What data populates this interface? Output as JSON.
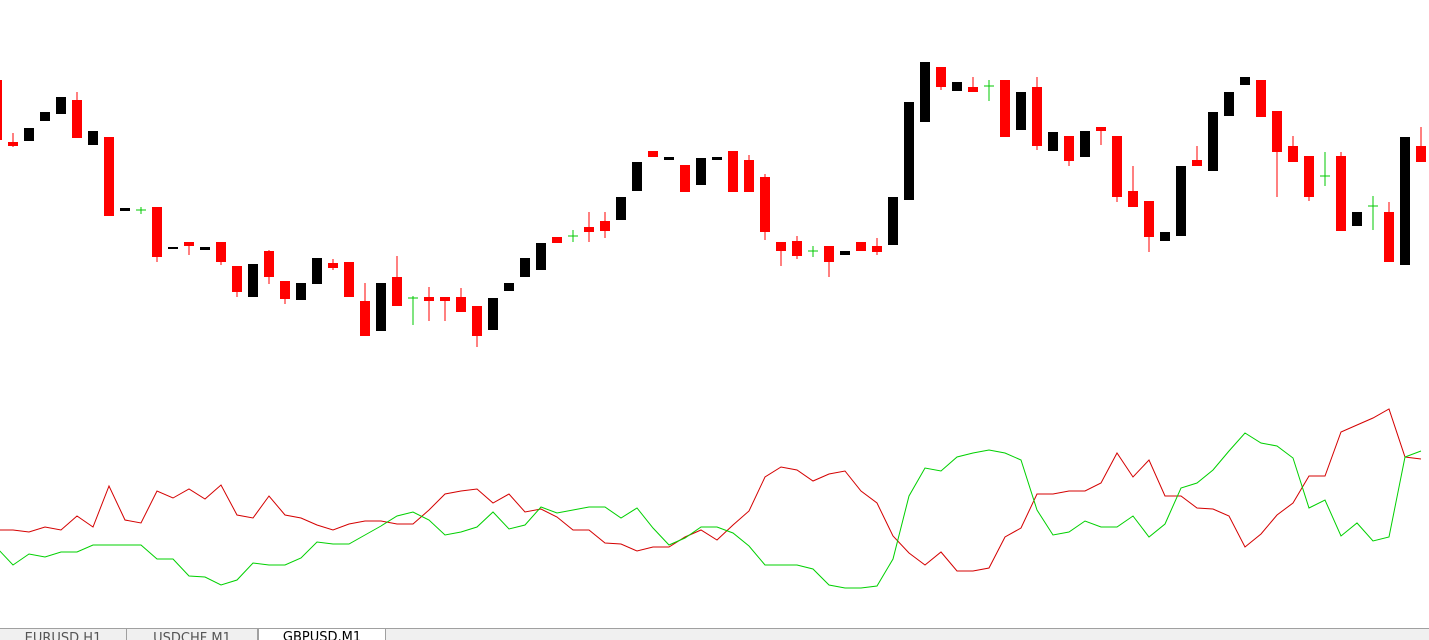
{
  "chart_data": [
    {
      "type": "candlestick",
      "open": [
        320,
        258,
        259,
        279,
        286,
        300,
        255,
        263,
        189,
        190,
        193,
        151,
        158,
        150,
        158,
        134,
        103,
        149,
        119,
        100,
        116,
        137,
        138,
        99,
        69,
        123,
        102,
        103,
        103,
        103,
        94,
        70,
        109,
        123,
        130,
        163,
        164,
        173,
        179,
        180,
        209,
        249,
        240,
        235,
        215,
        240,
        249,
        240,
        223,
        158,
        159,
        149,
        154,
        145,
        158,
        154,
        155,
        200,
        278,
        333,
        309,
        313,
        314,
        320,
        270,
        313,
        249,
        264,
        243,
        273,
        264,
        209,
        199,
        159,
        164,
        240,
        229,
        284,
        315,
        320,
        289,
        254,
        244,
        224,
        244,
        174,
        194,
        188,
        135,
        254
      ],
      "high": [
        320,
        267,
        272,
        288,
        303,
        308,
        269,
        263,
        192,
        193,
        193,
        153,
        158,
        153,
        158,
        134,
        136,
        150,
        119,
        117,
        142,
        141,
        138,
        117,
        117,
        144,
        104,
        113,
        103,
        112,
        94,
        102,
        117,
        142,
        157,
        163,
        170,
        188,
        188,
        203,
        238,
        249,
        243,
        235,
        242,
        243,
        249,
        245,
        226,
        158,
        164,
        154,
        154,
        149,
        158,
        162,
        203,
        298,
        338,
        333,
        318,
        323,
        320,
        320,
        308,
        323,
        268,
        264,
        269,
        273,
        264,
        234,
        199,
        168,
        234,
        254,
        288,
        308,
        323,
        320,
        289,
        264,
        244,
        248,
        248,
        188,
        204,
        198,
        263,
        273
      ],
      "low": [
        260,
        253,
        259,
        279,
        286,
        262,
        255,
        184,
        189,
        186,
        138,
        151,
        145,
        150,
        135,
        103,
        103,
        116,
        96,
        100,
        116,
        130,
        103,
        64,
        69,
        94,
        75,
        79,
        79,
        88,
        53,
        70,
        109,
        123,
        130,
        157,
        158,
        158,
        162,
        180,
        209,
        243,
        240,
        208,
        215,
        240,
        208,
        208,
        160,
        134,
        141,
        143,
        123,
        145,
        149,
        145,
        155,
        200,
        278,
        310,
        309,
        308,
        299,
        263,
        270,
        250,
        249,
        234,
        243,
        255,
        198,
        193,
        148,
        159,
        164,
        234,
        229,
        284,
        315,
        283,
        203,
        238,
        199,
        214,
        169,
        174,
        170,
        138,
        135,
        238
      ],
      "close": [
        260,
        254,
        272,
        288,
        303,
        262,
        269,
        184,
        192,
        190,
        143,
        153,
        154,
        153,
        138,
        108,
        136,
        123,
        101,
        117,
        142,
        132,
        103,
        64,
        117,
        94,
        102,
        99,
        99,
        88,
        64,
        102,
        117,
        142,
        157,
        157,
        164,
        168,
        169,
        203,
        238,
        243,
        243,
        208,
        242,
        243,
        208,
        208,
        168,
        149,
        144,
        149,
        138,
        149,
        149,
        148,
        203,
        298,
        338,
        313,
        318,
        308,
        314,
        263,
        308,
        254,
        268,
        239,
        269,
        269,
        203,
        193,
        163,
        168,
        234,
        234,
        288,
        308,
        323,
        283,
        248,
        238,
        203,
        224,
        169,
        188,
        194,
        138,
        263,
        238
      ],
      "up_color": "#000000",
      "down_color": "#ff0000",
      "doji_color": "#00c800",
      "ylim": [
        0,
        350
      ]
    },
    {
      "type": "line",
      "series": [
        {
          "color": "#d40000",
          "values": [
            70,
            70,
            68,
            73,
            70,
            84,
            73,
            114,
            80,
            77,
            109,
            102,
            111,
            101,
            115,
            85,
            82,
            104,
            85,
            82,
            75,
            70,
            76,
            79,
            79,
            76,
            76,
            90,
            106,
            109,
            111,
            97,
            106,
            88,
            91,
            83,
            70,
            70,
            57,
            56,
            49,
            53,
            53,
            63,
            70,
            60,
            75,
            89,
            123,
            133,
            130,
            119,
            126,
            129,
            109,
            97,
            64,
            47,
            35,
            48,
            29,
            29,
            32,
            63,
            72,
            106,
            106,
            109,
            109,
            117,
            147,
            123,
            140,
            104,
            104,
            92,
            91,
            84,
            53,
            66,
            85,
            97,
            124,
            124,
            168,
            175,
            182,
            191,
            143,
            141
          ]
        },
        {
          "color": "#00d000",
          "values": [
            52,
            35,
            46,
            43,
            48,
            48,
            55,
            55,
            55,
            55,
            41,
            41,
            24,
            23,
            15,
            20,
            37,
            35,
            35,
            42,
            58,
            56,
            56,
            65,
            74,
            84,
            88,
            80,
            65,
            68,
            73,
            88,
            71,
            75,
            93,
            87,
            90,
            93,
            93,
            82,
            92,
            72,
            55,
            62,
            73,
            73,
            67,
            54,
            35,
            35,
            35,
            31,
            15,
            12,
            12,
            14,
            41,
            104,
            132,
            129,
            143,
            147,
            150,
            147,
            140,
            90,
            65,
            68,
            79,
            73,
            73,
            84,
            63,
            76,
            112,
            117,
            130,
            149,
            167,
            157,
            154,
            142,
            92,
            100,
            64,
            77,
            59,
            63,
            143,
            149
          ]
        }
      ],
      "ylim": [
        0,
        200
      ]
    }
  ],
  "tabs": [
    "EURUSD,H1",
    "USDCHF,M1",
    "GBPUSD,M1"
  ]
}
